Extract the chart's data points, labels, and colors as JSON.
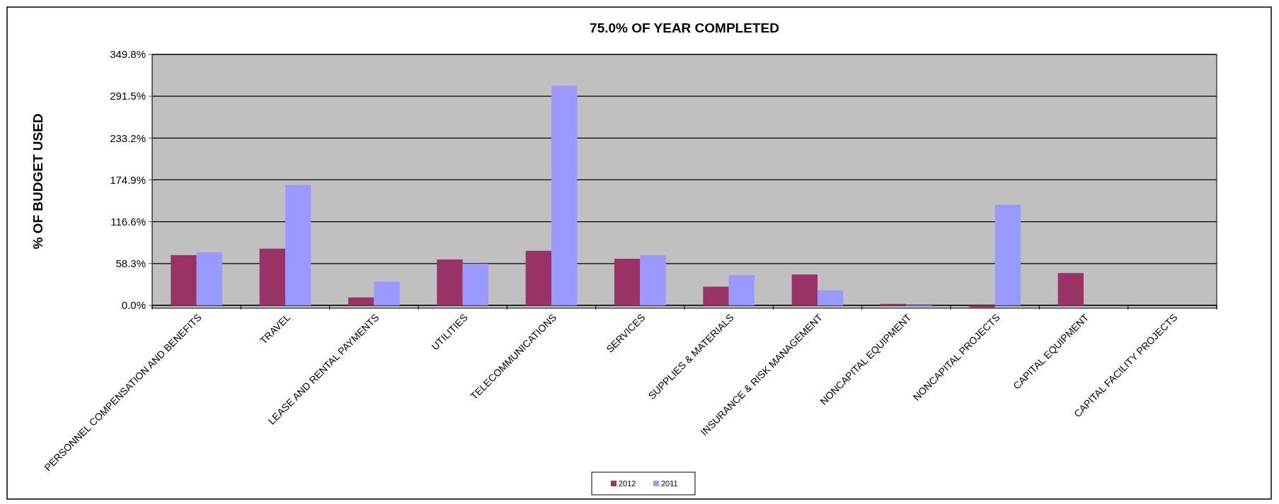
{
  "chart_data": {
    "type": "bar",
    "title": "75.0% OF YEAR COMPLETED",
    "ylabel": "% OF BUDGET USED",
    "categories": [
      "PERSONNEL COMPENSATION AND BENEFITS",
      "TRAVEL",
      "LEASE AND RENTAL PAYMENTS",
      "UTILITIES",
      "TELECOMMUNICATIONS",
      "SERVICES",
      "SUPPLIES & MATERIALS",
      "INSURANCE & RISK MANAGEMENT",
      "NONCAPITAL EQUIPMENT",
      "NONCAPITAL PROJECTS",
      "CAPITAL EQUIPMENT",
      "CAPITAL FACILITY PROJECTS"
    ],
    "series": [
      {
        "name": "2012",
        "color": "#993366",
        "values": [
          70,
          79,
          11,
          64,
          76,
          65,
          26,
          43,
          2,
          -3,
          45,
          null
        ]
      },
      {
        "name": "2011",
        "color": "#9999ff",
        "values": [
          74,
          168,
          33,
          58,
          306,
          70,
          42,
          21,
          -2,
          140,
          null,
          null
        ]
      }
    ],
    "ylim": [
      -4,
      349.8
    ],
    "yticks": [
      {
        "value": 0,
        "label": "0.0%"
      },
      {
        "value": 58.3,
        "label": "58.3%"
      },
      {
        "value": 116.6,
        "label": "116.6%"
      },
      {
        "value": 174.9,
        "label": "174.9%"
      },
      {
        "value": 233.2,
        "label": "233.2%"
      },
      {
        "value": 291.5,
        "label": "291.5%"
      },
      {
        "value": 349.8,
        "label": "349.8%"
      }
    ],
    "grid": "y",
    "legend": "bottom"
  }
}
